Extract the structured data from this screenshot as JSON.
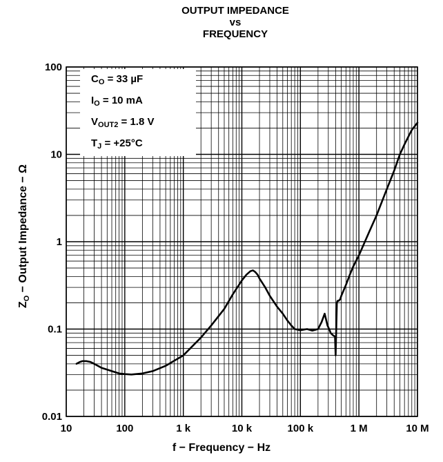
{
  "chart_data": {
    "type": "line",
    "title_lines": [
      "OUTPUT IMPEDANCE",
      "vs",
      "FREQUENCY"
    ],
    "xlabel": "f − Frequency − Hz",
    "ylabel": "Z",
    "ylabel_sub": "O",
    "ylabel_rest": " − Output Impedance − Ω",
    "x_scale": "log",
    "y_scale": "log",
    "xlim": [
      10,
      10000000
    ],
    "ylim": [
      0.01,
      100
    ],
    "grid": true,
    "x_ticks": [
      {
        "value": 10,
        "label": "10"
      },
      {
        "value": 100,
        "label": "100"
      },
      {
        "value": 1000,
        "label": "1 k"
      },
      {
        "value": 10000,
        "label": "10 k"
      },
      {
        "value": 100000,
        "label": "100 k"
      },
      {
        "value": 1000000,
        "label": "1 M"
      },
      {
        "value": 10000000,
        "label": "10 M"
      }
    ],
    "y_ticks": [
      {
        "value": 0.01,
        "label": "0.01"
      },
      {
        "value": 0.1,
        "label": "0.1"
      },
      {
        "value": 1,
        "label": "1"
      },
      {
        "value": 10,
        "label": "10"
      },
      {
        "value": 100,
        "label": "100"
      }
    ],
    "annotations": [
      {
        "main": "C",
        "sub": "O",
        "rest": " = 33 µF"
      },
      {
        "main": "I",
        "sub": "O",
        "rest": " = 10 mA"
      },
      {
        "main": "V",
        "sub": "OUT2",
        "rest": " = 1.8 V"
      },
      {
        "main": "T",
        "sub": "J",
        "rest": " = +25°C"
      }
    ],
    "legend_position": "top-left",
    "color": "#000000",
    "series": [
      {
        "x": [
          15,
          17,
          19,
          22,
          26,
          30,
          40,
          60,
          80,
          100,
          130,
          200,
          300,
          500,
          1000,
          2000,
          3000,
          5000,
          7000,
          10000,
          12000,
          14000,
          15500,
          17000,
          18500,
          20000,
          25000,
          30000,
          40000,
          50000,
          60000,
          70000,
          80000,
          100000,
          130000,
          160000,
          200000,
          230000,
          260000,
          290000,
          310000,
          330000,
          360000,
          390000,
          400000,
          420000,
          430000,
          450000,
          480000,
          500000,
          600000,
          700000,
          800000,
          1000000,
          1500000,
          2000000,
          3000000,
          4000000,
          5000000,
          6000000,
          7000000,
          8000000,
          9000000,
          10000000
        ],
        "y": [
          0.04,
          0.042,
          0.043,
          0.043,
          0.042,
          0.04,
          0.036,
          0.033,
          0.031,
          0.0305,
          0.0302,
          0.031,
          0.033,
          0.038,
          0.05,
          0.08,
          0.11,
          0.17,
          0.25,
          0.36,
          0.42,
          0.46,
          0.47,
          0.45,
          0.42,
          0.38,
          0.3,
          0.24,
          0.18,
          0.15,
          0.125,
          0.11,
          0.1,
          0.097,
          0.1,
          0.096,
          0.1,
          0.12,
          0.15,
          0.11,
          0.1,
          0.09,
          0.085,
          0.082,
          0.05,
          0.2,
          0.21,
          0.21,
          0.22,
          0.24,
          0.32,
          0.42,
          0.52,
          0.7,
          1.3,
          2.0,
          4.0,
          6.5,
          10,
          13,
          16,
          19,
          21,
          23
        ]
      }
    ]
  }
}
